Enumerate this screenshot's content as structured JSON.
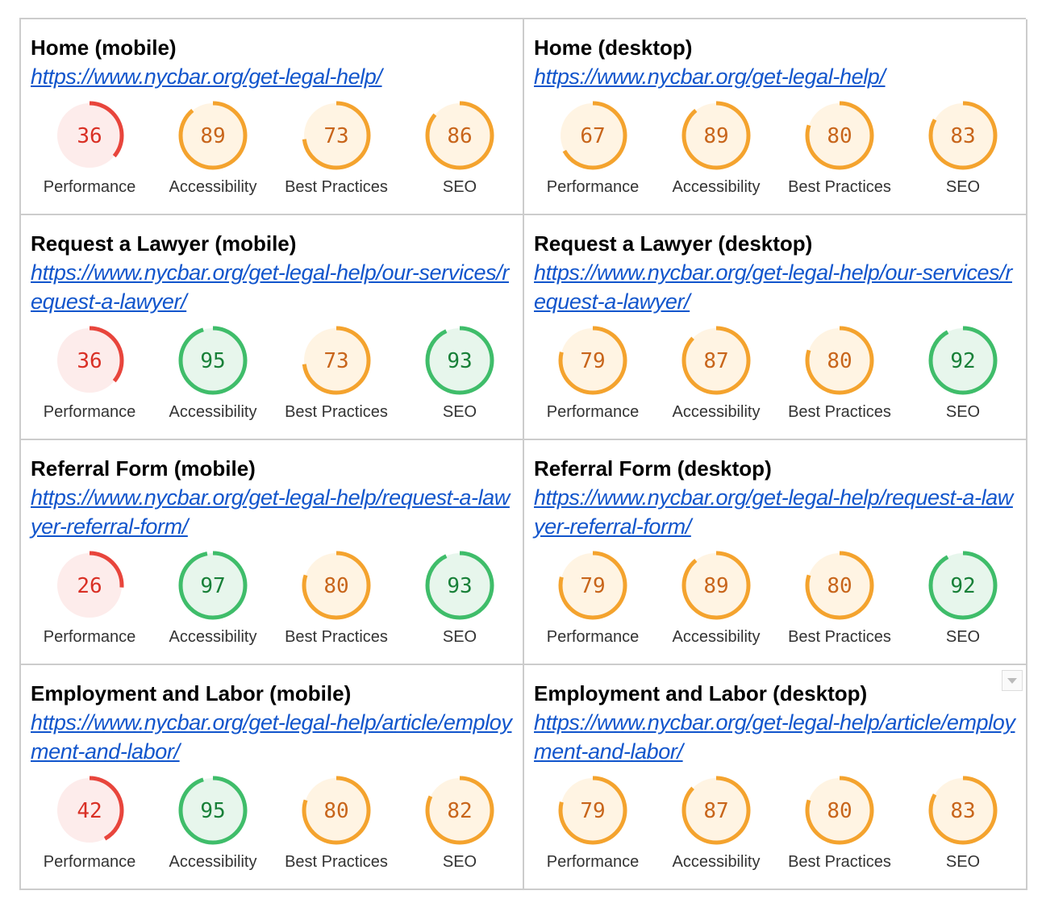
{
  "cells": [
    {
      "title": "Home (mobile)",
      "url": "https://www.nycbar.org/get-legal-help/",
      "scores": [
        {
          "label": "Performance",
          "value": 36
        },
        {
          "label": "Accessibility",
          "value": 89
        },
        {
          "label": "Best Practices",
          "value": 73
        },
        {
          "label": "SEO",
          "value": 86
        }
      ]
    },
    {
      "title": "Home (desktop)",
      "url": "https://www.nycbar.org/get-legal-help/",
      "scores": [
        {
          "label": "Performance",
          "value": 67
        },
        {
          "label": "Accessibility",
          "value": 89
        },
        {
          "label": "Best Practices",
          "value": 80
        },
        {
          "label": "SEO",
          "value": 83
        }
      ]
    },
    {
      "title": "Request a Lawyer (mobile)",
      "url": "https://www.nycbar.org/get-legal-help/our-services/request-a-lawyer/",
      "scores": [
        {
          "label": "Performance",
          "value": 36
        },
        {
          "label": "Accessibility",
          "value": 95
        },
        {
          "label": "Best Practices",
          "value": 73
        },
        {
          "label": "SEO",
          "value": 93
        }
      ]
    },
    {
      "title": "Request a Lawyer (desktop)",
      "url": "https://www.nycbar.org/get-legal-help/our-services/request-a-lawyer/",
      "scores": [
        {
          "label": "Performance",
          "value": 79
        },
        {
          "label": "Accessibility",
          "value": 87
        },
        {
          "label": "Best Practices",
          "value": 80
        },
        {
          "label": "SEO",
          "value": 92
        }
      ]
    },
    {
      "title": "Referral Form (mobile)",
      "url": "https://www.nycbar.org/get-legal-help/request-a-lawyer-referral-form/",
      "scores": [
        {
          "label": "Performance",
          "value": 26
        },
        {
          "label": "Accessibility",
          "value": 97
        },
        {
          "label": "Best Practices",
          "value": 80
        },
        {
          "label": "SEO",
          "value": 93
        }
      ]
    },
    {
      "title": "Referral Form (desktop)",
      "url": "https://www.nycbar.org/get-legal-help/request-a-lawyer-referral-form/",
      "scores": [
        {
          "label": "Performance",
          "value": 79
        },
        {
          "label": "Accessibility",
          "value": 89
        },
        {
          "label": "Best Practices",
          "value": 80
        },
        {
          "label": "SEO",
          "value": 92
        }
      ]
    },
    {
      "title": "Employment and Labor (mobile)",
      "url": "https://www.nycbar.org/get-legal-help/article/employment-and-labor/",
      "scores": [
        {
          "label": "Performance",
          "value": 42
        },
        {
          "label": "Accessibility",
          "value": 95
        },
        {
          "label": "Best Practices",
          "value": 80
        },
        {
          "label": "SEO",
          "value": 82
        }
      ]
    },
    {
      "title": "Employment and Labor (desktop)",
      "url": "https://www.nycbar.org/get-legal-help/article/employment-and-labor/",
      "scores": [
        {
          "label": "Performance",
          "value": 79
        },
        {
          "label": "Accessibility",
          "value": 87
        },
        {
          "label": "Best Practices",
          "value": 80
        },
        {
          "label": "SEO",
          "value": 83
        }
      ]
    }
  ]
}
